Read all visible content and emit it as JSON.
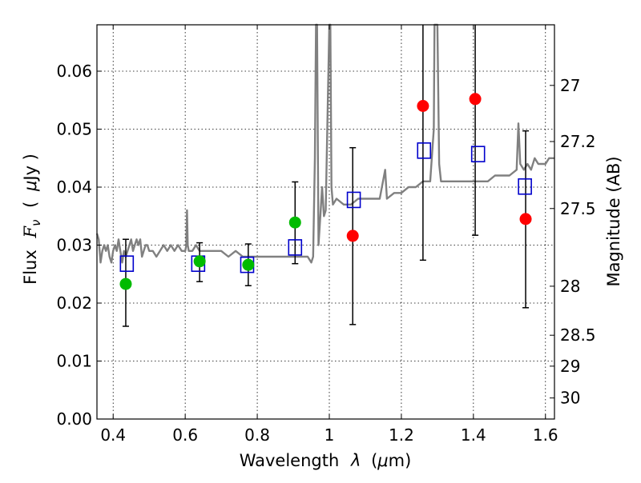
{
  "chart_data": {
    "type": "scatter",
    "title": "",
    "xlabel": "Wavelength  λ (μm)",
    "ylabel": "Flux  F_ν  ( μJy )",
    "ylabel_parts": {
      "prefix": "Flux",
      "symbol": "F",
      "symbol_sub": "ν",
      "open": "(",
      "mu": "μ",
      "unit": "Jy )"
    },
    "xlabel_parts": {
      "prefix": "Wavelength",
      "symbol": "λ",
      "unit_open": "(",
      "mu": "μ",
      "unit": "m)"
    },
    "y2label": "Magnitude (AB)",
    "xlim": [
      0.355,
      1.625
    ],
    "ylim": [
      0.0,
      0.068
    ],
    "grid": true,
    "x_ticks": [
      {
        "value": 0.4,
        "label": "0.4"
      },
      {
        "value": 0.6,
        "label": "0.6"
      },
      {
        "value": 0.8,
        "label": "0.8"
      },
      {
        "value": 1.0,
        "label": "1"
      },
      {
        "value": 1.2,
        "label": "1.2"
      },
      {
        "value": 1.4,
        "label": "1.4"
      },
      {
        "value": 1.6,
        "label": "1.6"
      }
    ],
    "y_ticks": [
      {
        "value": 0.0,
        "label": "0.00"
      },
      {
        "value": 0.01,
        "label": "0.01"
      },
      {
        "value": 0.02,
        "label": "0.02"
      },
      {
        "value": 0.03,
        "label": "0.03"
      },
      {
        "value": 0.04,
        "label": "0.04"
      },
      {
        "value": 0.05,
        "label": "0.05"
      },
      {
        "value": 0.06,
        "label": "0.06"
      }
    ],
    "y2_ticks": [
      {
        "mag": 27.0,
        "label": "27"
      },
      {
        "mag": 27.2,
        "label": "27.2"
      },
      {
        "mag": 27.5,
        "label": "27.5"
      },
      {
        "mag": 28.0,
        "label": "28"
      },
      {
        "mag": 28.5,
        "label": "28.5"
      },
      {
        "mag": 29.0,
        "label": "29"
      },
      {
        "mag": 30.0,
        "label": "30"
      }
    ],
    "series": [
      {
        "kind": "spectrum",
        "color": "#808080",
        "points": [
          [
            0.355,
            0.032
          ],
          [
            0.36,
            0.031
          ],
          [
            0.365,
            0.027
          ],
          [
            0.37,
            0.029
          ],
          [
            0.375,
            0.03
          ],
          [
            0.38,
            0.029
          ],
          [
            0.385,
            0.03
          ],
          [
            0.39,
            0.028
          ],
          [
            0.395,
            0.027
          ],
          [
            0.4,
            0.029
          ],
          [
            0.405,
            0.03
          ],
          [
            0.41,
            0.029
          ],
          [
            0.415,
            0.031
          ],
          [
            0.42,
            0.029
          ],
          [
            0.425,
            0.027
          ],
          [
            0.43,
            0.029
          ],
          [
            0.435,
            0.028
          ],
          [
            0.44,
            0.029
          ],
          [
            0.445,
            0.03
          ],
          [
            0.45,
            0.031
          ],
          [
            0.455,
            0.029
          ],
          [
            0.46,
            0.03
          ],
          [
            0.465,
            0.031
          ],
          [
            0.47,
            0.03
          ],
          [
            0.475,
            0.031
          ],
          [
            0.48,
            0.028
          ],
          [
            0.485,
            0.029
          ],
          [
            0.49,
            0.03
          ],
          [
            0.495,
            0.03
          ],
          [
            0.5,
            0.029
          ],
          [
            0.51,
            0.029
          ],
          [
            0.52,
            0.028
          ],
          [
            0.53,
            0.029
          ],
          [
            0.54,
            0.03
          ],
          [
            0.55,
            0.029
          ],
          [
            0.56,
            0.03
          ],
          [
            0.57,
            0.029
          ],
          [
            0.58,
            0.03
          ],
          [
            0.59,
            0.029
          ],
          [
            0.6,
            0.029
          ],
          [
            0.603,
            0.03
          ],
          [
            0.605,
            0.036
          ],
          [
            0.607,
            0.03
          ],
          [
            0.61,
            0.029
          ],
          [
            0.62,
            0.029
          ],
          [
            0.63,
            0.03
          ],
          [
            0.64,
            0.029
          ],
          [
            0.65,
            0.029
          ],
          [
            0.66,
            0.029
          ],
          [
            0.67,
            0.029
          ],
          [
            0.68,
            0.029
          ],
          [
            0.69,
            0.029
          ],
          [
            0.7,
            0.029
          ],
          [
            0.72,
            0.028
          ],
          [
            0.74,
            0.029
          ],
          [
            0.76,
            0.028
          ],
          [
            0.78,
            0.028
          ],
          [
            0.8,
            0.028
          ],
          [
            0.82,
            0.028
          ],
          [
            0.84,
            0.028
          ],
          [
            0.86,
            0.028
          ],
          [
            0.88,
            0.028
          ],
          [
            0.9,
            0.028
          ],
          [
            0.92,
            0.028
          ],
          [
            0.94,
            0.028
          ],
          [
            0.95,
            0.027
          ],
          [
            0.955,
            0.028
          ],
          [
            0.96,
            0.045
          ],
          [
            0.963,
            0.068
          ],
          [
            0.966,
            0.068
          ],
          [
            0.97,
            0.03
          ],
          [
            0.975,
            0.035
          ],
          [
            0.98,
            0.04
          ],
          [
            0.985,
            0.035
          ],
          [
            0.99,
            0.036
          ],
          [
            1.0,
            0.068
          ],
          [
            1.003,
            0.068
          ],
          [
            1.006,
            0.04
          ],
          [
            1.01,
            0.037
          ],
          [
            1.02,
            0.038
          ],
          [
            1.04,
            0.037
          ],
          [
            1.06,
            0.037
          ],
          [
            1.08,
            0.038
          ],
          [
            1.1,
            0.038
          ],
          [
            1.12,
            0.038
          ],
          [
            1.14,
            0.038
          ],
          [
            1.155,
            0.043
          ],
          [
            1.16,
            0.038
          ],
          [
            1.18,
            0.039
          ],
          [
            1.2,
            0.039
          ],
          [
            1.22,
            0.04
          ],
          [
            1.24,
            0.04
          ],
          [
            1.26,
            0.041
          ],
          [
            1.28,
            0.041
          ],
          [
            1.29,
            0.05
          ],
          [
            1.292,
            0.068
          ],
          [
            1.3,
            0.068
          ],
          [
            1.305,
            0.044
          ],
          [
            1.31,
            0.041
          ],
          [
            1.33,
            0.041
          ],
          [
            1.36,
            0.041
          ],
          [
            1.38,
            0.041
          ],
          [
            1.4,
            0.041
          ],
          [
            1.42,
            0.041
          ],
          [
            1.44,
            0.041
          ],
          [
            1.46,
            0.042
          ],
          [
            1.48,
            0.042
          ],
          [
            1.5,
            0.042
          ],
          [
            1.52,
            0.043
          ],
          [
            1.525,
            0.051
          ],
          [
            1.53,
            0.044
          ],
          [
            1.54,
            0.043
          ],
          [
            1.55,
            0.044
          ],
          [
            1.56,
            0.043
          ],
          [
            1.57,
            0.045
          ],
          [
            1.58,
            0.044
          ],
          [
            1.59,
            0.044
          ],
          [
            1.6,
            0.044
          ],
          [
            1.61,
            0.045
          ],
          [
            1.625,
            0.045
          ]
        ]
      },
      {
        "kind": "model",
        "name": "",
        "color": "#0000cc",
        "marker": "open-square",
        "points": [
          {
            "x": 0.438,
            "y": 0.0268
          },
          {
            "x": 0.636,
            "y": 0.0268
          },
          {
            "x": 0.772,
            "y": 0.0266
          },
          {
            "x": 0.905,
            "y": 0.0296
          },
          {
            "x": 1.068,
            "y": 0.0378
          },
          {
            "x": 1.263,
            "y": 0.0463
          },
          {
            "x": 1.413,
            "y": 0.0457
          },
          {
            "x": 1.543,
            "y": 0.0401
          }
        ]
      },
      {
        "kind": "detections",
        "name": "",
        "color": "#00bb00",
        "marker": "filled-circle",
        "points": [
          {
            "x": 0.435,
            "y": 0.0233,
            "err_lo": 0.016,
            "err_hi": 0.031
          },
          {
            "x": 0.64,
            "y": 0.0272,
            "err_lo": 0.0237,
            "err_hi": 0.0304
          },
          {
            "x": 0.775,
            "y": 0.0266,
            "err_lo": 0.023,
            "err_hi": 0.0302
          },
          {
            "x": 0.905,
            "y": 0.0339,
            "err_lo": 0.0268,
            "err_hi": 0.0409
          }
        ]
      },
      {
        "kind": "upper_limits",
        "name": "",
        "color": "#ff0000",
        "marker": "filled-circle",
        "points": [
          {
            "x": 1.065,
            "y": 0.0316,
            "err_lo": 0.0163,
            "err_hi": 0.0468
          },
          {
            "x": 1.26,
            "y": 0.054,
            "err_lo": 0.0274,
            "err_hi": 0.068
          },
          {
            "x": 1.405,
            "y": 0.0552,
            "err_lo": 0.0317,
            "err_hi": 0.068
          },
          {
            "x": 1.545,
            "y": 0.0345,
            "err_lo": 0.0192,
            "err_hi": 0.0497
          }
        ]
      }
    ]
  }
}
